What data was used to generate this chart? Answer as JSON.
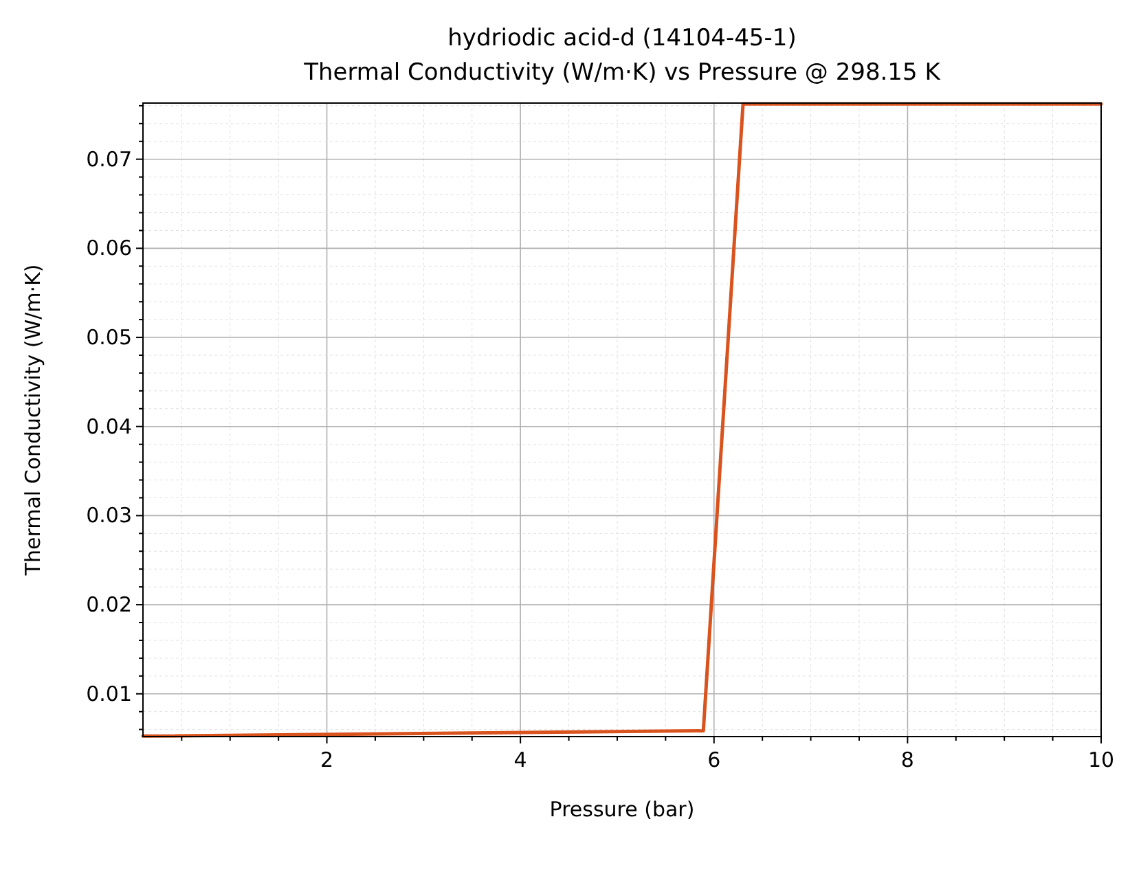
{
  "chart_data": {
    "type": "line",
    "title": "hydriodic acid-d (14104-45-1)",
    "subtitle": "Thermal Conductivity (W/m·K) vs Pressure @ 298.15 K",
    "xlabel": "Pressure (bar)",
    "ylabel": "Thermal Conductivity (W/m·K)",
    "x": [
      0.1,
      5.89,
      6.3,
      10
    ],
    "series": [
      {
        "color": "#d9531e",
        "values": [
          0.00525,
          0.00585,
          0.0762,
          0.0762
        ]
      }
    ],
    "xlim": [
      0.1,
      10
    ],
    "ylim": [
      0.0052,
      0.0763
    ],
    "xticks": [
      {
        "value": 0.5,
        "label": null
      },
      {
        "value": 1,
        "label": null
      },
      {
        "value": 1.5,
        "label": null
      },
      2,
      {
        "value": 2.5,
        "label": null
      },
      {
        "value": 3,
        "label": null
      },
      {
        "value": 3.5,
        "label": null
      },
      4,
      {
        "value": 4.5,
        "label": null
      },
      {
        "value": 5,
        "label": null
      },
      {
        "value": 5.5,
        "label": null
      },
      6,
      {
        "value": 6.5,
        "label": null
      },
      {
        "value": 7,
        "label": null
      },
      {
        "value": 7.5,
        "label": null
      },
      8,
      {
        "value": 8.5,
        "label": null
      },
      {
        "value": 9,
        "label": null
      },
      {
        "value": 9.5,
        "label": null
      },
      10
    ],
    "yticks": [
      {
        "value": 0.006,
        "label": null
      },
      {
        "value": 0.008,
        "label": null
      },
      0.01,
      {
        "value": 0.012,
        "label": null
      },
      {
        "value": 0.014,
        "label": null
      },
      {
        "value": 0.016,
        "label": null
      },
      {
        "value": 0.018,
        "label": null
      },
      0.02,
      {
        "value": 0.022,
        "label": null
      },
      {
        "value": 0.024,
        "label": null
      },
      {
        "value": 0.026,
        "label": null
      },
      {
        "value": 0.028,
        "label": null
      },
      0.03,
      {
        "value": 0.032,
        "label": null
      },
      {
        "value": 0.034,
        "label": null
      },
      {
        "value": 0.036,
        "label": null
      },
      {
        "value": 0.038,
        "label": null
      },
      0.04,
      {
        "value": 0.042,
        "label": null
      },
      {
        "value": 0.044,
        "label": null
      },
      {
        "value": 0.046,
        "label": null
      },
      {
        "value": 0.048,
        "label": null
      },
      0.05,
      {
        "value": 0.052,
        "label": null
      },
      {
        "value": 0.054,
        "label": null
      },
      {
        "value": 0.056,
        "label": null
      },
      {
        "value": 0.058,
        "label": null
      },
      0.06,
      {
        "value": 0.062,
        "label": null
      },
      {
        "value": 0.064,
        "label": null
      },
      {
        "value": 0.066,
        "label": null
      },
      {
        "value": 0.068,
        "label": null
      },
      0.07,
      {
        "value": 0.072,
        "label": null
      },
      {
        "value": 0.074,
        "label": null
      },
      {
        "value": 0.076,
        "label": null
      }
    ],
    "grid": true,
    "line_style": "solid",
    "marker": "none"
  }
}
